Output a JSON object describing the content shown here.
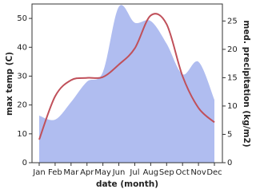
{
  "chart_data": {
    "type": "line",
    "x_label": "date (month)",
    "y_label": "max temp (C)",
    "y2_label": "med. precipitation (kg/m2)",
    "categories": [
      "Jan",
      "Feb",
      "Mar",
      "Apr",
      "May",
      "Jun",
      "Jul",
      "Aug",
      "Sep",
      "Oct",
      "Nov",
      "Dec"
    ],
    "series": [
      {
        "type": "area",
        "axis": "y2",
        "color": "#b0bdf0",
        "values": [
          8.3,
          7.6,
          10.7,
          14.3,
          16,
          27.5,
          24.7,
          25,
          21,
          15.6,
          17.8,
          11.1
        ]
      },
      {
        "type": "line",
        "axis": "y",
        "color": "#c0505a",
        "values": [
          8,
          23,
          28.6,
          29.4,
          29.7,
          34,
          39.6,
          51,
          48,
          30,
          19,
          14
        ]
      }
    ],
    "ylim": [
      0,
      55
    ],
    "yticks": [
      0,
      10,
      20,
      30,
      40,
      50
    ],
    "y2lim": [
      0,
      28
    ],
    "y2ticks": [
      0,
      5,
      10,
      15,
      20,
      25
    ]
  }
}
